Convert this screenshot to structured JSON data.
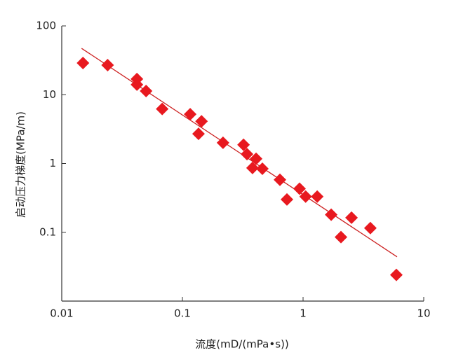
{
  "chart_data": {
    "type": "scatter",
    "xlabel": "流度(mD/(mPa•s))",
    "ylabel": "启动压力梯度(MPa/m)",
    "x": [
      0.015,
      0.024,
      0.042,
      0.042,
      0.05,
      0.068,
      0.116,
      0.136,
      0.144,
      0.217,
      0.321,
      0.343,
      0.408,
      0.381,
      0.46,
      0.643,
      0.735,
      0.935,
      1.05,
      1.31,
      1.71,
      2.06,
      2.52,
      3.61,
      5.93
    ],
    "values": [
      28.9,
      26.9,
      16.9,
      14.0,
      11.3,
      6.2,
      5.2,
      2.7,
      4.1,
      2.0,
      1.87,
      1.37,
      1.17,
      0.86,
      0.84,
      0.58,
      0.3,
      0.43,
      0.33,
      0.33,
      0.18,
      0.085,
      0.163,
      0.115,
      0.024
    ],
    "color": "#e8191f",
    "fit": {
      "x": [
        0.0146,
        6.01
      ],
      "values": [
        47.2,
        0.044
      ],
      "color": "#cc2020"
    },
    "xscale": "log",
    "yscale": "log",
    "xlim": [
      0.01,
      10
    ],
    "ylim": [
      0.01,
      100
    ],
    "xticks": [
      0.01,
      0.1,
      1,
      10
    ],
    "yticks": [
      0.1,
      1,
      10,
      100
    ]
  }
}
